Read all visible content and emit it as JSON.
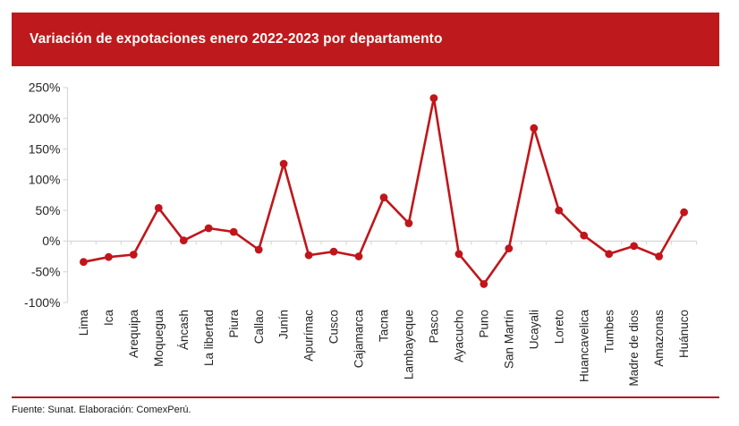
{
  "banner": {
    "title": "Variación de expotaciones enero 2022-2023 por departamento",
    "background": "#be1a1d",
    "text_color": "#ffffff"
  },
  "chart_data": {
    "type": "line",
    "title": "Variación de expotaciones enero 2022-2023 por departamento",
    "categories": [
      "Lima",
      "Ica",
      "Arequipa",
      "Moquegua",
      "Áncash",
      "La libertad",
      "Piura",
      "Callao",
      "Junín",
      "Apurímac",
      "Cusco",
      "Cajamarca",
      "Tacna",
      "Lambayeque",
      "Pasco",
      "Ayacucho",
      "Puno",
      "San Martín",
      "Ucayali",
      "Loreto",
      "Huancavelica",
      "Tumbes",
      "Madre de dios",
      "Amazonas",
      "Huánuco"
    ],
    "values": [
      -34,
      -26,
      -22,
      54,
      1,
      21,
      15,
      -14,
      126,
      -23,
      -17,
      -25,
      71,
      29,
      233,
      -21,
      -70,
      -12,
      184,
      50,
      9,
      -21,
      -8,
      -25,
      47
    ],
    "unit": "%",
    "xlabel": "",
    "ylabel": "",
    "ylim": [
      -100,
      250
    ],
    "yticks": [
      250,
      200,
      150,
      100,
      50,
      0,
      -50,
      -100
    ],
    "grid": "zero-line-only",
    "legend": "none",
    "series_color": "#c0161b",
    "axis_color": "#d9d9d9",
    "tick_label_color": "#262626",
    "marker": "circle"
  },
  "footer": {
    "source": "Fuente: Sunat. Elaboración: ComexPerú.",
    "divider_color": "#b5151b"
  }
}
